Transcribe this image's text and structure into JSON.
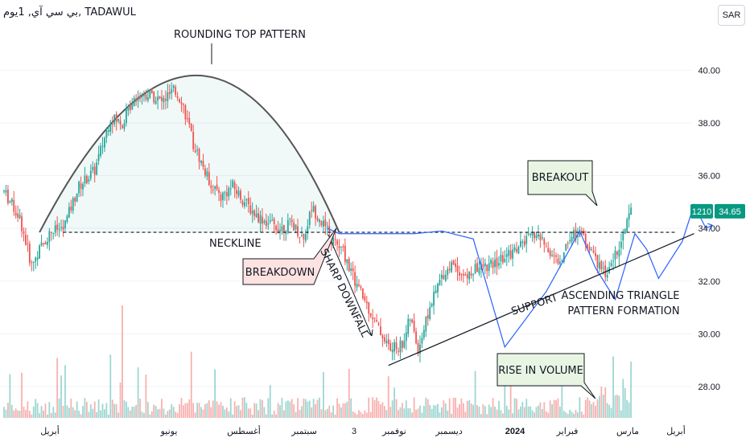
{
  "header": {
    "symbol_info": "بي سي آي, 1يوم, TADAWUL"
  },
  "currency_button": "SAR",
  "price_badge": {
    "label": "1210",
    "value": "34.65"
  },
  "colors": {
    "up": "#26a69a",
    "down": "#ef5350",
    "line": "#2962ff",
    "curve": "#555555",
    "grid": "#f0f3fa"
  },
  "annotations": {
    "rounding_top": "ROUNDING TOP PATTERN",
    "neckline": "NECKLINE",
    "breakdown": "BREAKDOWN",
    "sharp_downfall": "SHARP DOWNFALL",
    "breakout": "BREAKOUT",
    "support": "SUPPORT",
    "triangle_line1": "ASCENDING TRIANGLE",
    "triangle_line2": "PATTERN FORMATION",
    "volume": "RISE IN VOLUME"
  },
  "chart_data": {
    "type": "candlestick",
    "ylim": [
      26.5,
      41.2
    ],
    "y_ticks": [
      "40.00",
      "38.00",
      "36.00",
      "34.00",
      "32.00",
      "30.00",
      "28.00"
    ],
    "x_tick_labels": [
      "أبريل",
      "يونيو",
      "أغسطس",
      "سبتمبر",
      "3",
      "نوفمبر",
      "ديسمبر",
      "2024",
      "فبراير",
      "مارس",
      "أبريل"
    ],
    "neckline": 33.85,
    "rounding_top_peak": 39.8,
    "price_key_points": [
      [
        0,
        35.4
      ],
      [
        8,
        34.4
      ],
      [
        14,
        32.6
      ],
      [
        18,
        33.2
      ],
      [
        24,
        33.9
      ],
      [
        30,
        34.0
      ],
      [
        38,
        35.6
      ],
      [
        46,
        36.2
      ],
      [
        54,
        38.2
      ],
      [
        60,
        38.0
      ],
      [
        66,
        39.0
      ],
      [
        74,
        39.1
      ],
      [
        80,
        38.8
      ],
      [
        86,
        39.2
      ],
      [
        90,
        38.9
      ],
      [
        96,
        37.2
      ],
      [
        104,
        35.8
      ],
      [
        110,
        35.2
      ],
      [
        116,
        35.6
      ],
      [
        122,
        35.0
      ],
      [
        128,
        34.5
      ],
      [
        134,
        34.2
      ],
      [
        140,
        34.0
      ],
      [
        146,
        34.2
      ],
      [
        152,
        33.6
      ],
      [
        156,
        34.8
      ],
      [
        160,
        34.4
      ],
      [
        166,
        33.6
      ],
      [
        172,
        33.1
      ],
      [
        178,
        32.0
      ],
      [
        184,
        31.1
      ],
      [
        190,
        30.2
      ],
      [
        196,
        29.4
      ],
      [
        202,
        29.6
      ],
      [
        206,
        30.6
      ],
      [
        210,
        29.4
      ],
      [
        216,
        31.0
      ],
      [
        222,
        32.2
      ],
      [
        228,
        32.7
      ],
      [
        234,
        32.1
      ],
      [
        240,
        32.5
      ],
      [
        248,
        32.6
      ],
      [
        256,
        33.0
      ],
      [
        264,
        33.5
      ],
      [
        270,
        33.8
      ],
      [
        276,
        33.2
      ],
      [
        282,
        32.6
      ],
      [
        286,
        33.6
      ],
      [
        292,
        33.9
      ],
      [
        298,
        33.1
      ],
      [
        302,
        32.5
      ],
      [
        306,
        32.2
      ],
      [
        310,
        33.0
      ],
      [
        314,
        33.8
      ],
      [
        318,
        34.65
      ]
    ],
    "blue_path": [
      [
        14,
        34.0
      ],
      [
        20,
        33.8
      ],
      [
        42,
        33.8
      ],
      [
        58,
        33.8
      ],
      [
        72,
        33.9
      ],
      [
        88,
        33.6
      ],
      [
        104,
        29.5
      ],
      [
        125,
        31.6
      ],
      [
        142,
        33.9
      ],
      [
        150,
        32.5
      ],
      [
        160,
        31.3
      ],
      [
        170,
        33.8
      ],
      [
        176,
        33.2
      ],
      [
        182,
        32.1
      ],
      [
        194,
        33.5
      ],
      [
        200,
        34.9
      ],
      [
        206,
        34.0
      ]
    ],
    "triangle_support_line": [
      [
        180,
        28.8
      ],
      [
        350,
        33.8
      ]
    ]
  }
}
